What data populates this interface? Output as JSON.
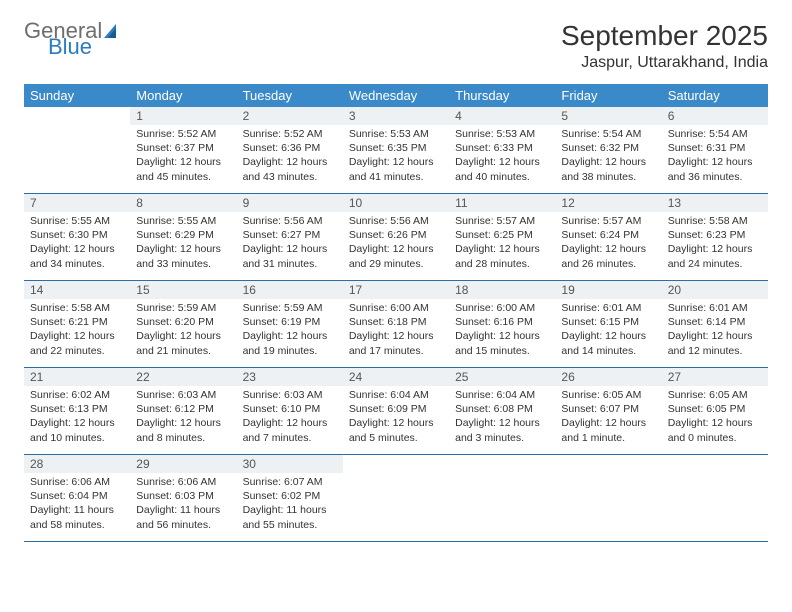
{
  "logo": {
    "word1": "General",
    "word2": "Blue"
  },
  "title": "September 2025",
  "location": "Jaspur, Uttarakhand, India",
  "colors": {
    "header_bg": "#3a8ac9",
    "header_text": "#ffffff",
    "daynum_bg": "#eef1f3",
    "rule": "#2a6ea8",
    "logo_gray": "#6e6e6e",
    "logo_blue": "#2b7cc0"
  },
  "dayHeaders": [
    "Sunday",
    "Monday",
    "Tuesday",
    "Wednesday",
    "Thursday",
    "Friday",
    "Saturday"
  ],
  "weeks": [
    [
      {
        "n": "",
        "sr": "",
        "ss": "",
        "dl": ""
      },
      {
        "n": "1",
        "sr": "Sunrise: 5:52 AM",
        "ss": "Sunset: 6:37 PM",
        "dl": "Daylight: 12 hours and 45 minutes."
      },
      {
        "n": "2",
        "sr": "Sunrise: 5:52 AM",
        "ss": "Sunset: 6:36 PM",
        "dl": "Daylight: 12 hours and 43 minutes."
      },
      {
        "n": "3",
        "sr": "Sunrise: 5:53 AM",
        "ss": "Sunset: 6:35 PM",
        "dl": "Daylight: 12 hours and 41 minutes."
      },
      {
        "n": "4",
        "sr": "Sunrise: 5:53 AM",
        "ss": "Sunset: 6:33 PM",
        "dl": "Daylight: 12 hours and 40 minutes."
      },
      {
        "n": "5",
        "sr": "Sunrise: 5:54 AM",
        "ss": "Sunset: 6:32 PM",
        "dl": "Daylight: 12 hours and 38 minutes."
      },
      {
        "n": "6",
        "sr": "Sunrise: 5:54 AM",
        "ss": "Sunset: 6:31 PM",
        "dl": "Daylight: 12 hours and 36 minutes."
      }
    ],
    [
      {
        "n": "7",
        "sr": "Sunrise: 5:55 AM",
        "ss": "Sunset: 6:30 PM",
        "dl": "Daylight: 12 hours and 34 minutes."
      },
      {
        "n": "8",
        "sr": "Sunrise: 5:55 AM",
        "ss": "Sunset: 6:29 PM",
        "dl": "Daylight: 12 hours and 33 minutes."
      },
      {
        "n": "9",
        "sr": "Sunrise: 5:56 AM",
        "ss": "Sunset: 6:27 PM",
        "dl": "Daylight: 12 hours and 31 minutes."
      },
      {
        "n": "10",
        "sr": "Sunrise: 5:56 AM",
        "ss": "Sunset: 6:26 PM",
        "dl": "Daylight: 12 hours and 29 minutes."
      },
      {
        "n": "11",
        "sr": "Sunrise: 5:57 AM",
        "ss": "Sunset: 6:25 PM",
        "dl": "Daylight: 12 hours and 28 minutes."
      },
      {
        "n": "12",
        "sr": "Sunrise: 5:57 AM",
        "ss": "Sunset: 6:24 PM",
        "dl": "Daylight: 12 hours and 26 minutes."
      },
      {
        "n": "13",
        "sr": "Sunrise: 5:58 AM",
        "ss": "Sunset: 6:23 PM",
        "dl": "Daylight: 12 hours and 24 minutes."
      }
    ],
    [
      {
        "n": "14",
        "sr": "Sunrise: 5:58 AM",
        "ss": "Sunset: 6:21 PM",
        "dl": "Daylight: 12 hours and 22 minutes."
      },
      {
        "n": "15",
        "sr": "Sunrise: 5:59 AM",
        "ss": "Sunset: 6:20 PM",
        "dl": "Daylight: 12 hours and 21 minutes."
      },
      {
        "n": "16",
        "sr": "Sunrise: 5:59 AM",
        "ss": "Sunset: 6:19 PM",
        "dl": "Daylight: 12 hours and 19 minutes."
      },
      {
        "n": "17",
        "sr": "Sunrise: 6:00 AM",
        "ss": "Sunset: 6:18 PM",
        "dl": "Daylight: 12 hours and 17 minutes."
      },
      {
        "n": "18",
        "sr": "Sunrise: 6:00 AM",
        "ss": "Sunset: 6:16 PM",
        "dl": "Daylight: 12 hours and 15 minutes."
      },
      {
        "n": "19",
        "sr": "Sunrise: 6:01 AM",
        "ss": "Sunset: 6:15 PM",
        "dl": "Daylight: 12 hours and 14 minutes."
      },
      {
        "n": "20",
        "sr": "Sunrise: 6:01 AM",
        "ss": "Sunset: 6:14 PM",
        "dl": "Daylight: 12 hours and 12 minutes."
      }
    ],
    [
      {
        "n": "21",
        "sr": "Sunrise: 6:02 AM",
        "ss": "Sunset: 6:13 PM",
        "dl": "Daylight: 12 hours and 10 minutes."
      },
      {
        "n": "22",
        "sr": "Sunrise: 6:03 AM",
        "ss": "Sunset: 6:12 PM",
        "dl": "Daylight: 12 hours and 8 minutes."
      },
      {
        "n": "23",
        "sr": "Sunrise: 6:03 AM",
        "ss": "Sunset: 6:10 PM",
        "dl": "Daylight: 12 hours and 7 minutes."
      },
      {
        "n": "24",
        "sr": "Sunrise: 6:04 AM",
        "ss": "Sunset: 6:09 PM",
        "dl": "Daylight: 12 hours and 5 minutes."
      },
      {
        "n": "25",
        "sr": "Sunrise: 6:04 AM",
        "ss": "Sunset: 6:08 PM",
        "dl": "Daylight: 12 hours and 3 minutes."
      },
      {
        "n": "26",
        "sr": "Sunrise: 6:05 AM",
        "ss": "Sunset: 6:07 PM",
        "dl": "Daylight: 12 hours and 1 minute."
      },
      {
        "n": "27",
        "sr": "Sunrise: 6:05 AM",
        "ss": "Sunset: 6:05 PM",
        "dl": "Daylight: 12 hours and 0 minutes."
      }
    ],
    [
      {
        "n": "28",
        "sr": "Sunrise: 6:06 AM",
        "ss": "Sunset: 6:04 PM",
        "dl": "Daylight: 11 hours and 58 minutes."
      },
      {
        "n": "29",
        "sr": "Sunrise: 6:06 AM",
        "ss": "Sunset: 6:03 PM",
        "dl": "Daylight: 11 hours and 56 minutes."
      },
      {
        "n": "30",
        "sr": "Sunrise: 6:07 AM",
        "ss": "Sunset: 6:02 PM",
        "dl": "Daylight: 11 hours and 55 minutes."
      },
      {
        "n": "",
        "sr": "",
        "ss": "",
        "dl": ""
      },
      {
        "n": "",
        "sr": "",
        "ss": "",
        "dl": ""
      },
      {
        "n": "",
        "sr": "",
        "ss": "",
        "dl": ""
      },
      {
        "n": "",
        "sr": "",
        "ss": "",
        "dl": ""
      }
    ]
  ]
}
